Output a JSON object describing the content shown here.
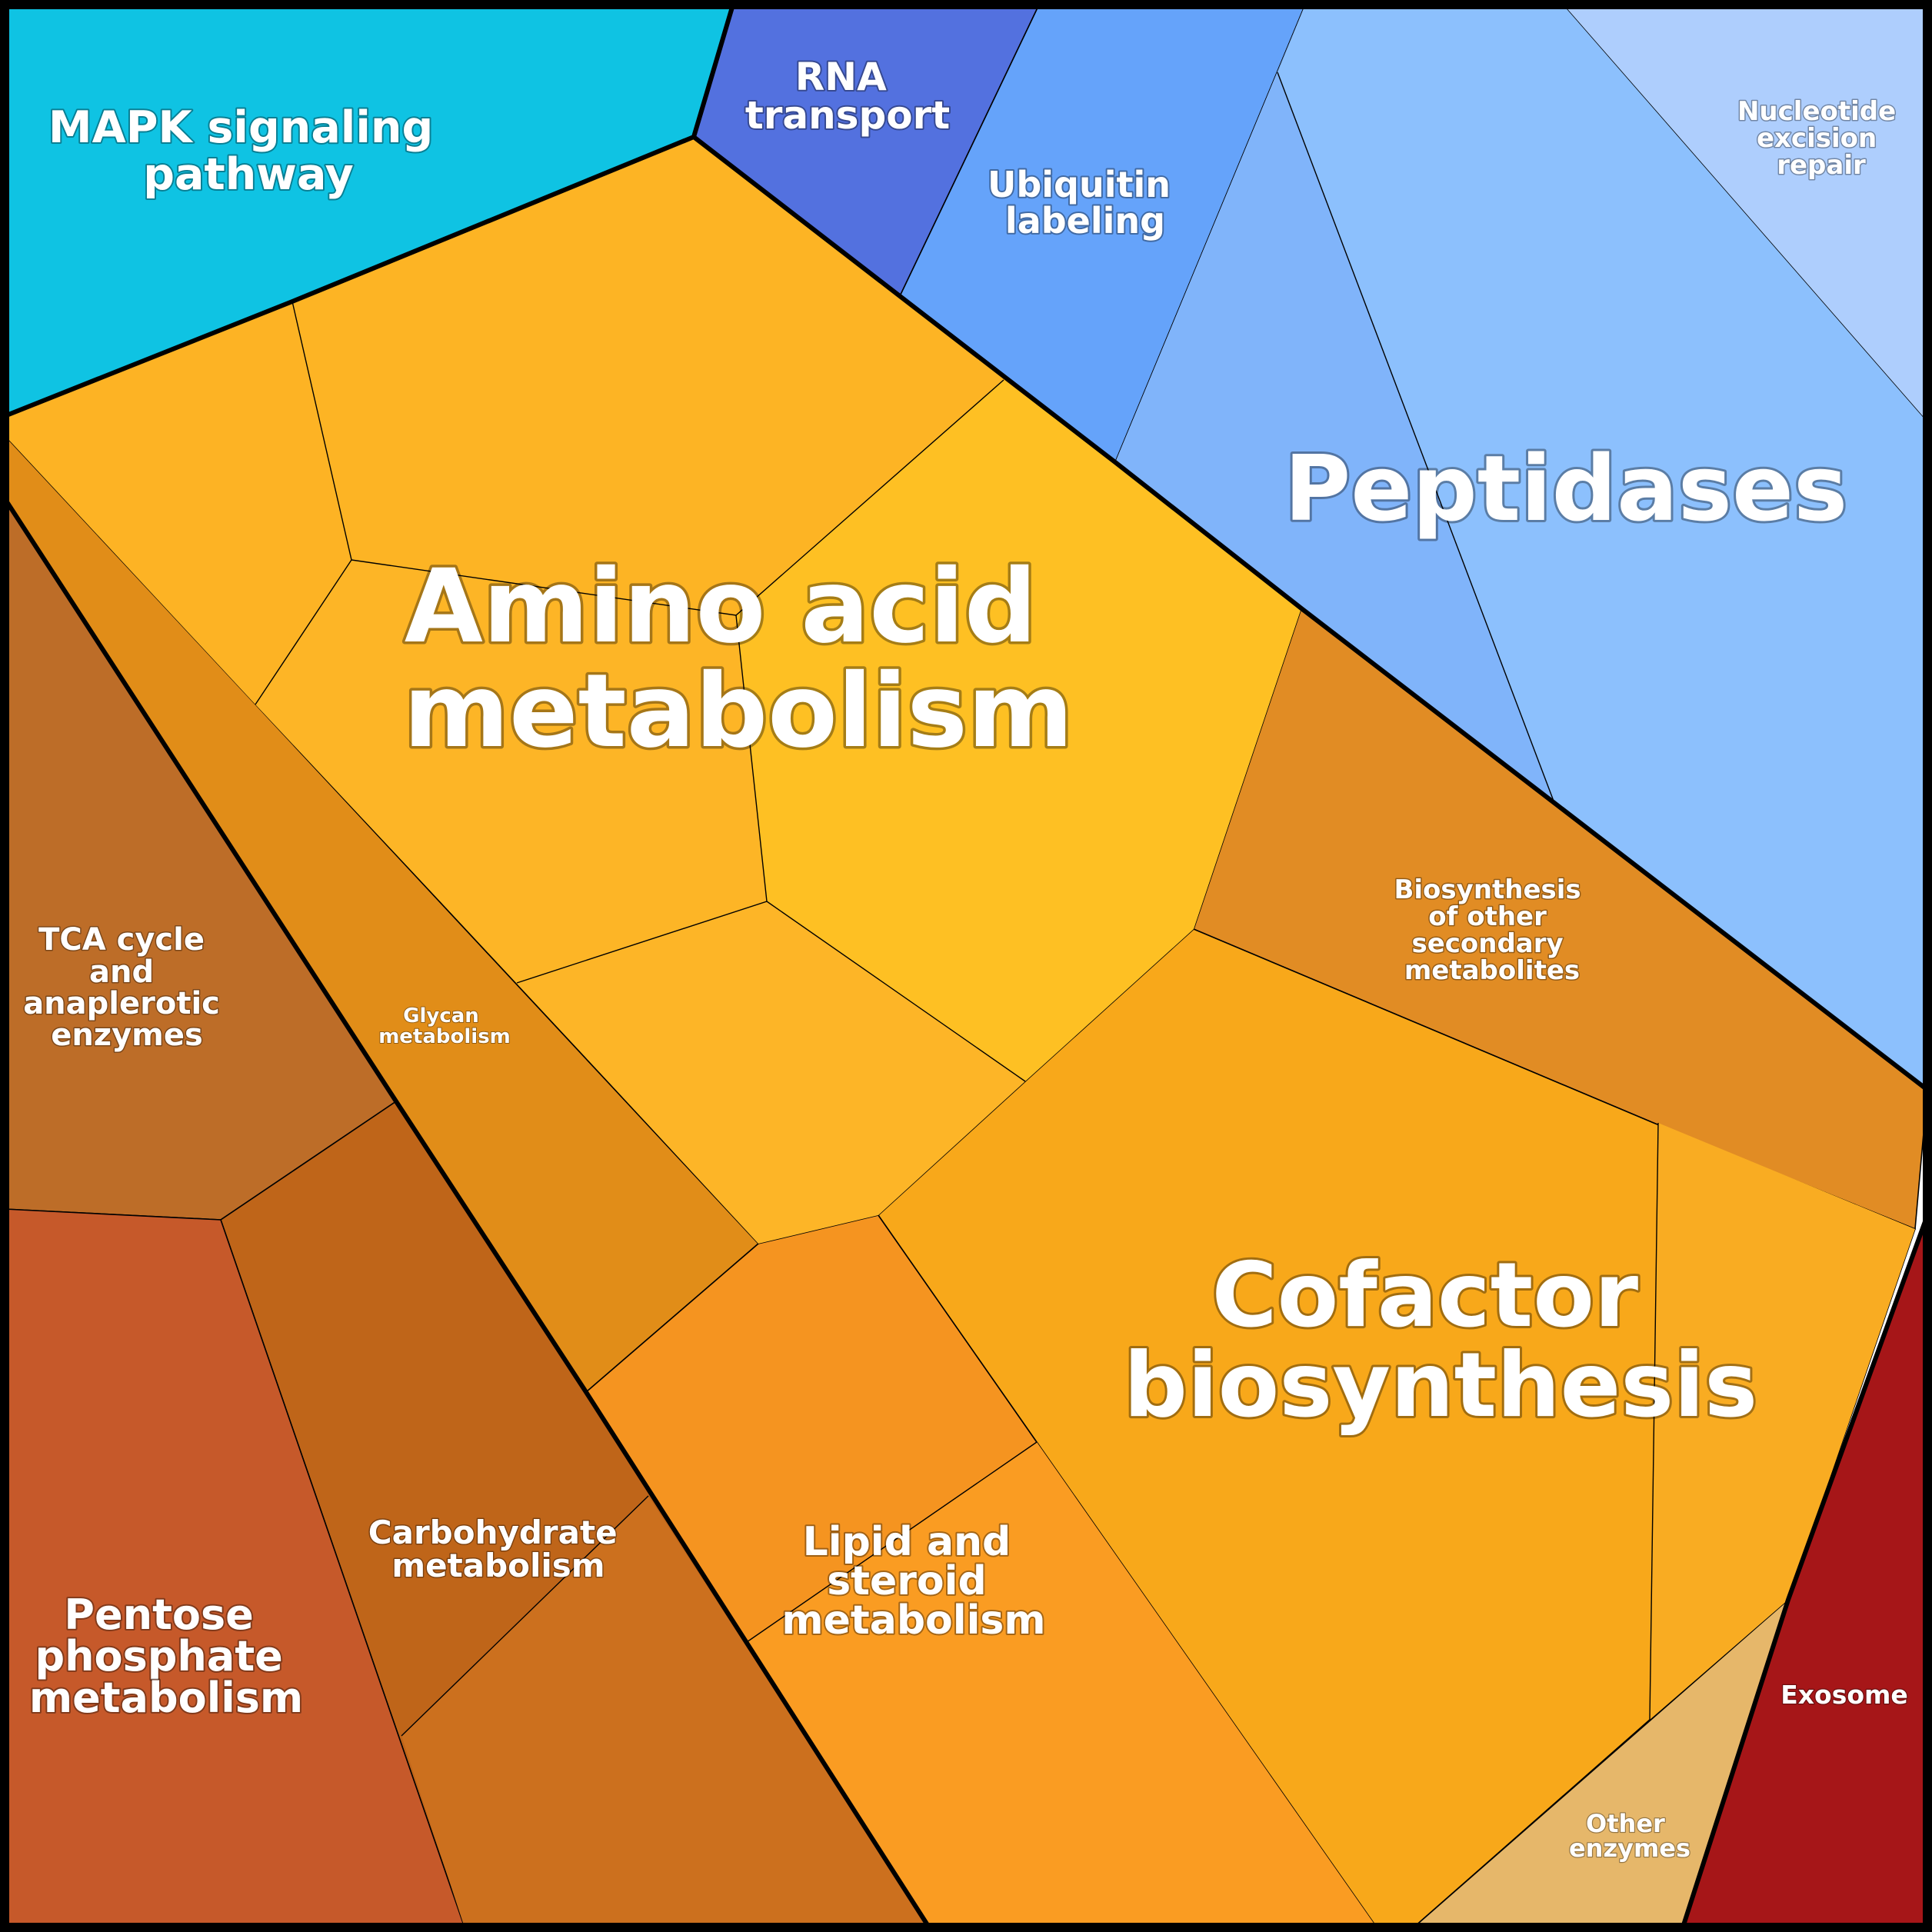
{
  "diagram": {
    "type": "voronoi-treemap",
    "groups": [
      {
        "id": "mapk",
        "label": [
          "MAPK signaling",
          "pathway"
        ],
        "color": "#0fc3e3"
      },
      {
        "id": "rna",
        "label": [
          "RNA",
          "transport"
        ],
        "color": "#5371df"
      },
      {
        "id": "ubiquitin",
        "label": [
          "Ubiquitin",
          "labeling"
        ],
        "color": "#65a3fa"
      },
      {
        "id": "peptidases",
        "label": [
          "Peptidases"
        ],
        "color": "#88bdfc"
      },
      {
        "id": "nucleotide",
        "label": [
          "Nucleotide",
          "excision",
          "repair"
        ],
        "color": "#aecefd"
      },
      {
        "id": "amino",
        "label": [
          "Amino acid",
          "metabolism"
        ],
        "color": "#fdb424"
      },
      {
        "id": "biosyn",
        "label": [
          "Biosynthesis",
          "of other",
          "secondary",
          "metabolites"
        ],
        "color": "#e18c24"
      },
      {
        "id": "glycan",
        "label": [
          "Glycan",
          "metabolism"
        ],
        "color": "#e18d18"
      },
      {
        "id": "tca",
        "label": [
          "TCA cycle",
          "and",
          "anaplerotic",
          "enzymes"
        ],
        "color": "#bd6d28"
      },
      {
        "id": "carb",
        "label": [
          "Carbohydrate",
          "metabolism"
        ],
        "color": "#bf6519"
      },
      {
        "id": "pentose",
        "label": [
          "Pentose",
          "phosphate",
          "metabolism"
        ],
        "color": "#c6592a"
      },
      {
        "id": "lipid",
        "label": [
          "Lipid and",
          "steroid",
          "metabolism"
        ],
        "color": "#f59420"
      },
      {
        "id": "cofactor",
        "label": [
          "Cofactor",
          "biosynthesis"
        ],
        "color": "#f8a81a"
      },
      {
        "id": "other",
        "label": [
          "Other",
          "enzymes"
        ],
        "color": "#e6b76a"
      },
      {
        "id": "exosome",
        "label": [
          "Exosome"
        ],
        "color": "#a61618"
      }
    ]
  }
}
